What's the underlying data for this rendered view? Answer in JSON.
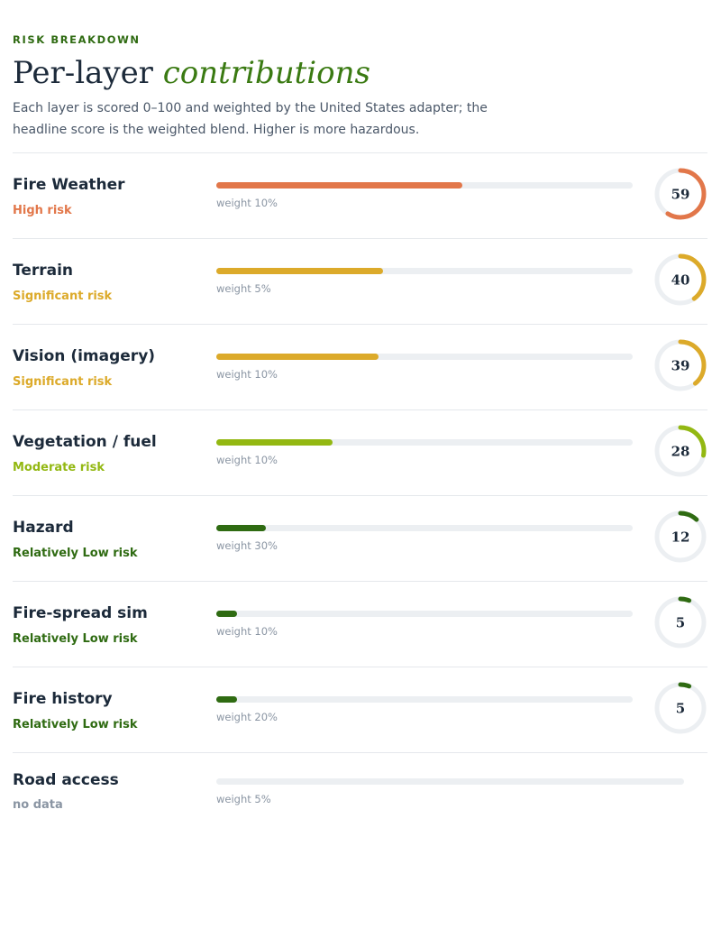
{
  "header": {
    "eyebrow": "RISK BREAKDOWN",
    "title_main": "Per-layer",
    "title_accent": "contributions",
    "description": "Each layer is scored 0–100 and weighted by the United States adapter; the headline score is the weighted blend. Higher is more hazardous."
  },
  "colors": {
    "high": "#e2774a",
    "significant": "#dcaa2a",
    "moderate": "#93b812",
    "low": "#2f6b12",
    "nodata": "#8a95a3",
    "track": "#eceff2"
  },
  "layers": [
    {
      "name": "Fire Weather",
      "risk": "High risk",
      "level": "high",
      "score": 59,
      "weight": "weight 10%"
    },
    {
      "name": "Terrain",
      "risk": "Significant risk",
      "level": "significant",
      "score": 40,
      "weight": "weight 5%"
    },
    {
      "name": "Vision (imagery)",
      "risk": "Significant risk",
      "level": "significant",
      "score": 39,
      "weight": "weight 10%"
    },
    {
      "name": "Vegetation / fuel",
      "risk": "Moderate risk",
      "level": "moderate",
      "score": 28,
      "weight": "weight 10%"
    },
    {
      "name": "Hazard",
      "risk": "Relatively Low risk",
      "level": "low",
      "score": 12,
      "weight": "weight 30%"
    },
    {
      "name": "Fire-spread sim",
      "risk": "Relatively Low risk",
      "level": "low",
      "score": 5,
      "weight": "weight 10%"
    },
    {
      "name": "Fire history",
      "risk": "Relatively Low risk",
      "level": "low",
      "score": 5,
      "weight": "weight 20%"
    },
    {
      "name": "Road access",
      "risk": "no data",
      "level": "nodata",
      "score": null,
      "weight": "weight 5%"
    }
  ]
}
